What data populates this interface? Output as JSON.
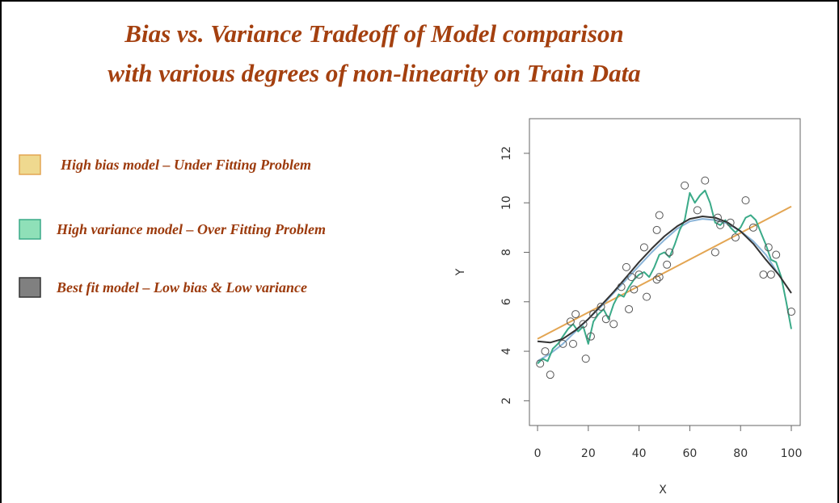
{
  "chart_data": {
    "type": "scatter",
    "title": [
      "Bias vs. Variance Tradeoff of Model comparison",
      "with various degrees of non-linearity on Train Data"
    ],
    "x_label": "X",
    "y_label": "Y",
    "xlim": [
      -3.2,
      103.5
    ],
    "ylim": [
      1.0,
      13.4
    ],
    "xticks": [
      0,
      20,
      40,
      60,
      80,
      100
    ],
    "yticks": [
      2,
      4,
      6,
      8,
      10,
      12
    ],
    "points": {
      "color": "#555555",
      "x": [
        1,
        3,
        5,
        10,
        13,
        14,
        15,
        18,
        19,
        21,
        22,
        25,
        27,
        30,
        33,
        35,
        36,
        37,
        38,
        40,
        42,
        43,
        47,
        47,
        48,
        48,
        51,
        52,
        58,
        63,
        66,
        70,
        71,
        72,
        76,
        78,
        82,
        85,
        89,
        91,
        92,
        94,
        100
      ],
      "y": [
        3.5,
        4.0,
        3.05,
        4.3,
        5.2,
        4.3,
        5.5,
        5.1,
        3.7,
        4.6,
        5.5,
        5.8,
        5.3,
        5.1,
        6.6,
        7.4,
        5.7,
        7.0,
        6.5,
        7.1,
        8.2,
        6.2,
        8.9,
        6.9,
        7.0,
        9.5,
        7.5,
        8.0,
        10.7,
        9.7,
        10.9,
        8.0,
        9.4,
        9.1,
        9.2,
        8.6,
        10.1,
        9.0,
        7.1,
        8.2,
        7.1,
        7.9,
        5.6
      ]
    },
    "series": [
      {
        "name": "High bias model – Under Fitting Problem",
        "color": "#e3a552",
        "swatch": "#efd98f",
        "x": [
          0,
          100
        ],
        "values": [
          4.5,
          9.85
        ]
      },
      {
        "name": "High variance model – Over Fitting Problem",
        "color": "#3aaa88",
        "swatch": "#8fe0b8",
        "x": [
          0,
          2,
          4,
          6,
          8,
          10,
          12,
          14,
          16,
          18,
          20,
          22,
          24,
          26,
          28,
          30,
          32,
          34,
          36,
          38,
          40,
          42,
          44,
          46,
          48,
          50,
          52,
          54,
          56,
          58,
          60,
          62,
          64,
          66,
          68,
          70,
          72,
          74,
          76,
          78,
          80,
          82,
          84,
          86,
          88,
          90,
          92,
          94,
          96,
          98,
          100
        ],
        "values": [
          3.5,
          3.7,
          3.6,
          4.1,
          4.3,
          4.6,
          4.9,
          5.1,
          4.8,
          5.0,
          4.3,
          5.2,
          5.5,
          5.7,
          5.3,
          5.9,
          6.3,
          6.2,
          6.6,
          6.9,
          7.1,
          7.2,
          7.0,
          7.4,
          7.9,
          8.0,
          7.8,
          8.3,
          8.9,
          9.3,
          10.4,
          10.0,
          10.3,
          10.5,
          10.0,
          9.2,
          9.1,
          9.3,
          9.0,
          8.8,
          9.0,
          9.4,
          9.5,
          9.3,
          8.8,
          8.3,
          7.7,
          7.6,
          7.0,
          6.0,
          4.9
        ]
      },
      {
        "name": "Best fit model – Low bias & Low variance",
        "color": "#333333",
        "swatch": "#808080",
        "x": [
          0,
          5,
          10,
          15,
          20,
          25,
          30,
          35,
          40,
          45,
          50,
          55,
          60,
          65,
          70,
          75,
          80,
          85,
          90,
          95,
          100
        ],
        "values": [
          4.4,
          4.35,
          4.5,
          4.85,
          5.3,
          5.85,
          6.4,
          7.0,
          7.6,
          8.15,
          8.65,
          9.05,
          9.35,
          9.45,
          9.4,
          9.2,
          8.85,
          8.35,
          7.7,
          7.1,
          6.35
        ]
      },
      {
        "color": "#8ab4d8",
        "x": [
          0,
          5,
          10,
          15,
          20,
          25,
          30,
          35,
          40,
          45,
          50,
          55,
          60,
          65,
          70,
          75,
          80,
          85,
          90,
          95
        ],
        "values": [
          3.6,
          3.9,
          4.3,
          4.8,
          5.3,
          5.8,
          6.35,
          6.9,
          7.45,
          8.0,
          8.5,
          8.95,
          9.25,
          9.35,
          9.3,
          9.15,
          8.85,
          8.45,
          7.9,
          7.1
        ]
      }
    ]
  }
}
